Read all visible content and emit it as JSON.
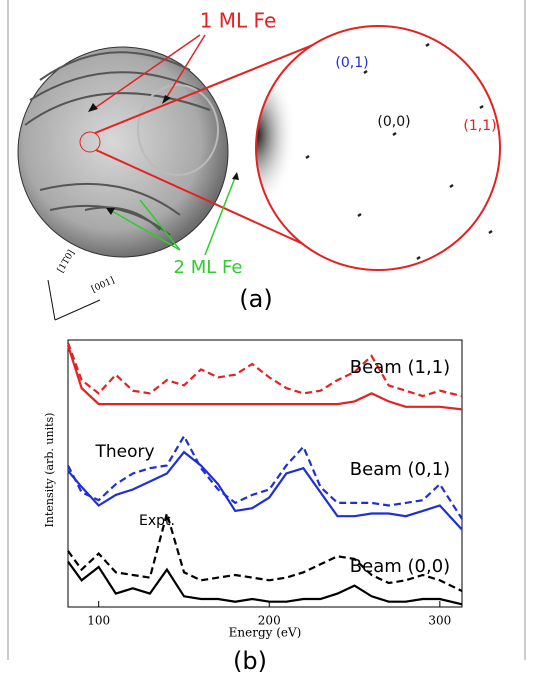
{
  "panel_a": {
    "label": "(a)",
    "one_ml": "1 ML Fe",
    "two_ml": "2 ML Fe",
    "spot_01": "(0,1)",
    "spot_00": "(0,0)",
    "spot_11": "(1,1)",
    "dir_1": "[1T0]",
    "dir_2": "[001]"
  },
  "chart_data": {
    "type": "line",
    "panel_label": "(b)",
    "x_label": "Energy (eV)",
    "y_label": "Intensity (arb. units)",
    "x": [
      82,
      90,
      100,
      110,
      120,
      130,
      140,
      150,
      160,
      170,
      180,
      190,
      200,
      210,
      220,
      230,
      240,
      250,
      260,
      270,
      280,
      290,
      300,
      313
    ],
    "xlim": [
      82,
      313
    ],
    "xticks": [
      100,
      200,
      300
    ],
    "ylim": [
      0,
      10
    ],
    "series": [
      {
        "color": "#e32222",
        "style": "solid",
        "values": [
          9.8,
          8.2,
          7.6,
          7.6,
          7.6,
          7.6,
          7.6,
          7.6,
          7.6,
          7.6,
          7.6,
          7.6,
          7.6,
          7.6,
          7.6,
          7.6,
          7.6,
          7.7,
          8.0,
          7.7,
          7.5,
          7.5,
          7.5,
          7.4
        ]
      },
      {
        "color": "#e32222",
        "style": "dashed",
        "values": [
          9.9,
          8.5,
          8.0,
          8.7,
          8.1,
          8.0,
          8.5,
          8.3,
          8.9,
          8.6,
          8.7,
          9.1,
          8.6,
          8.2,
          8.0,
          8.1,
          8.5,
          8.8,
          9.4,
          8.3,
          8.1,
          7.9,
          8.1,
          7.9
        ]
      },
      {
        "color": "#1f2fd6",
        "style": "solid",
        "values": [
          5.1,
          4.5,
          3.8,
          4.2,
          4.4,
          4.7,
          5.0,
          5.8,
          5.3,
          4.6,
          3.6,
          3.7,
          4.1,
          5.0,
          5.2,
          4.3,
          3.4,
          3.4,
          3.5,
          3.5,
          3.4,
          3.6,
          3.8,
          2.9
        ]
      },
      {
        "color": "#1f2fd6",
        "style": "dashed",
        "values": [
          5.3,
          4.3,
          4.0,
          4.6,
          5.0,
          5.2,
          5.3,
          6.4,
          5.2,
          4.4,
          3.9,
          4.2,
          4.4,
          5.3,
          6.0,
          4.5,
          3.9,
          3.9,
          3.9,
          3.8,
          3.9,
          4.0,
          4.6,
          3.3
        ]
      },
      {
        "color": "#000000",
        "style": "solid",
        "values": [
          1.7,
          1.0,
          1.5,
          0.5,
          0.7,
          0.5,
          1.4,
          0.4,
          0.3,
          0.3,
          0.2,
          0.3,
          0.2,
          0.2,
          0.3,
          0.3,
          0.5,
          0.8,
          0.4,
          0.2,
          0.2,
          0.3,
          0.3,
          0.1
        ]
      },
      {
        "color": "#000000",
        "style": "dashed",
        "values": [
          2.1,
          1.4,
          2.0,
          1.3,
          1.2,
          1.1,
          3.5,
          1.3,
          1.0,
          1.1,
          1.2,
          1.1,
          1.0,
          1.1,
          1.3,
          1.6,
          1.9,
          1.8,
          1.2,
          0.9,
          1.0,
          1.2,
          1.0,
          0.6
        ]
      }
    ],
    "annotations": [
      "Beam (1,1)",
      "Beam (0,1)",
      "Beam (0,0)",
      "Theory",
      "Expt."
    ]
  }
}
